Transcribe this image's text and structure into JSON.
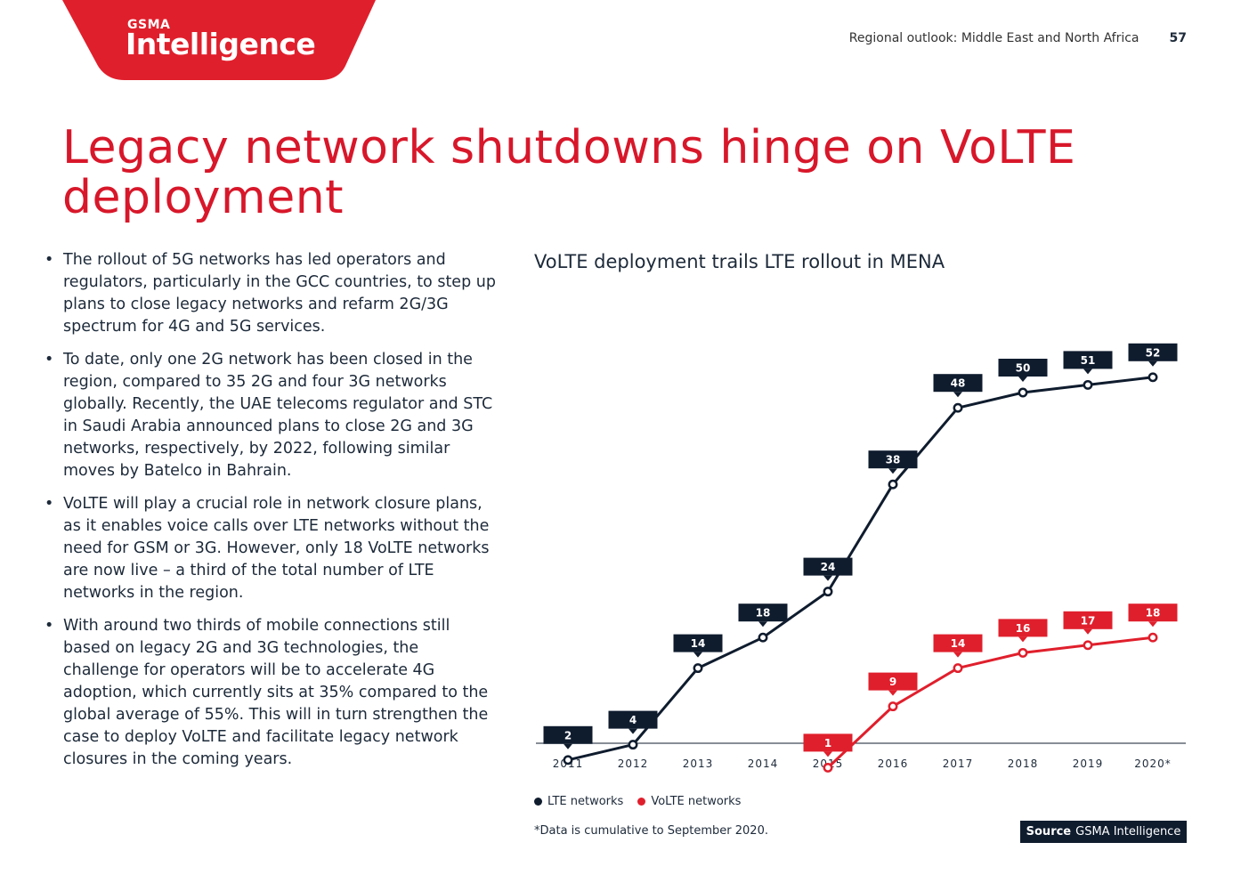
{
  "brand": {
    "small": "GSMA",
    "name": "Intelligence",
    "color": "#e01f2c"
  },
  "header": {
    "section": "Regional outlook: Middle East and North Africa",
    "page_number": "57"
  },
  "title": "Legacy network shutdowns hinge on VoLTE deployment",
  "bullets": [
    "The rollout of 5G networks has led operators and regulators, particularly in the GCC countries, to step up plans to close legacy networks and refarm 2G/3G spectrum for 4G and 5G services.",
    "To date, only one 2G network has been closed in the region, compared to 35 2G and four 3G networks globally. Recently, the UAE telecoms regulator and STC in Saudi Arabia announced plans to close 2G and 3G networks, respectively, by 2022, following similar moves by Batelco in Bahrain.",
    "VoLTE will play a crucial role in network closure plans, as it enables voice calls over LTE networks without the need for GSM or 3G. However, only 18 VoLTE networks are now live – a third of the total number of LTE networks in the region.",
    "With around two thirds of mobile connections still based on legacy 2G and 3G technologies, the challenge for operators will be to accelerate 4G adoption, which currently sits at 35% compared to the global average of 55%. This will in turn strengthen the case to deploy VoLTE and facilitate legacy network closures in the coming years."
  ],
  "chart_data": {
    "type": "line",
    "title": "VoLTE deployment trails LTE rollout in MENA",
    "categories": [
      "2011",
      "2012",
      "2013",
      "2014",
      "2015",
      "2016",
      "2017",
      "2018",
      "2019",
      "2020*"
    ],
    "series": [
      {
        "name": "LTE networks",
        "color": "#0f1c2e",
        "values": [
          2,
          4,
          14,
          18,
          24,
          38,
          48,
          50,
          51,
          52
        ]
      },
      {
        "name": "VoLTE networks",
        "color": "#e01f2c",
        "values": [
          null,
          null,
          null,
          null,
          1,
          9,
          14,
          16,
          17,
          18
        ]
      }
    ],
    "ylim": [
      0,
      60
    ],
    "grid": false,
    "legend": "bottom-left",
    "xlabel": "",
    "ylabel": ""
  },
  "footnote": "*Data is cumulative to September 2020.",
  "source": {
    "label": "Source",
    "text": "GSMA Intelligence"
  }
}
